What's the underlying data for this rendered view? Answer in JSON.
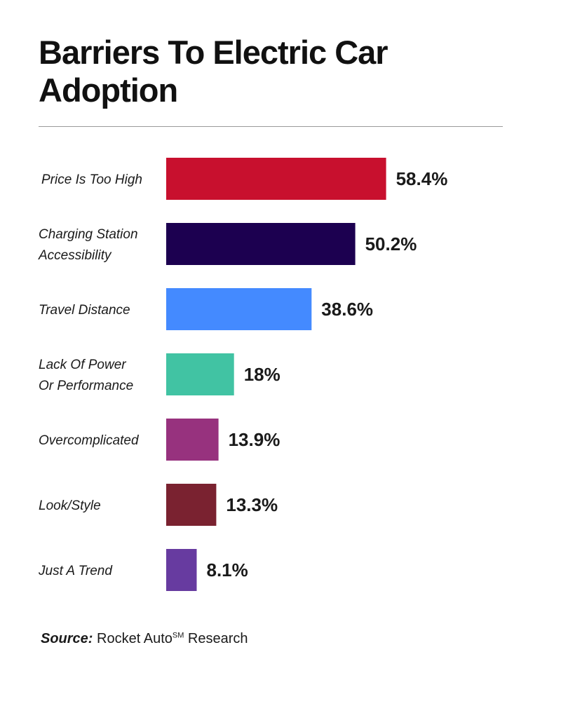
{
  "chart_data": {
    "type": "bar",
    "orientation": "horizontal",
    "title": "Barriers To Electric Car Adoption",
    "categories": [
      [
        "Price Is Too High"
      ],
      [
        "Charging Station",
        "Accessibility"
      ],
      [
        "Travel Distance"
      ],
      [
        "Lack Of Power",
        "Or Performance"
      ],
      [
        "Overcomplicated"
      ],
      [
        "Look/Style"
      ],
      [
        "Just A Trend"
      ]
    ],
    "values": [
      58.4,
      50.2,
      38.6,
      18,
      13.9,
      13.3,
      8.1
    ],
    "value_labels": [
      "58.4%",
      "50.2%",
      "38.6%",
      "18%",
      "13.9%",
      "13.3%",
      "8.1%"
    ],
    "colors": [
      "#c8102e",
      "#1c0050",
      "#448aff",
      "#41c3a3",
      "#97327e",
      "#7a2230",
      "#673ba0"
    ],
    "xlim": [
      0,
      100
    ],
    "unit": "%"
  },
  "source": {
    "label": "Source:",
    "text": " Rocket Auto",
    "superscript": "SM",
    "suffix": " Research"
  }
}
